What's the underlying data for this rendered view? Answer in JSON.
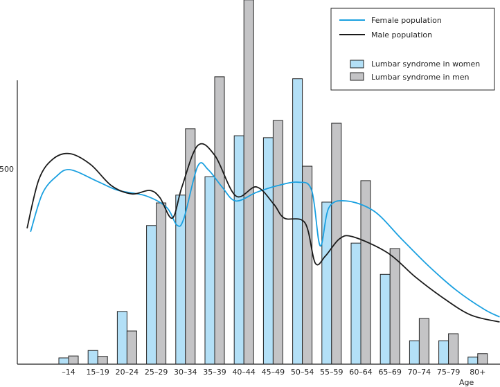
{
  "chart_data": {
    "type": "bar+line",
    "title": "",
    "xlabel": "Age",
    "ylabel": "",
    "y_ticks": [
      {
        "value": 500,
        "label": "500"
      }
    ],
    "ylim": [
      0,
      935
    ],
    "categories": [
      "–14",
      "15–19",
      "20–24",
      "25–29",
      "30–34",
      "35–39",
      "40–44",
      "45–49",
      "50–54",
      "55–59",
      "60–64",
      "65–69",
      "70–74",
      "75–79",
      "80+"
    ],
    "colors": {
      "female_line": "#1aa0e0",
      "male_line": "#1a1a1a",
      "women_bar": "#b3e0f7",
      "men_bar": "#c4c4c6",
      "bar_stroke": "#222222"
    },
    "bars": [
      {
        "name": "Lumbar syndrome in women",
        "values": [
          16,
          35,
          135,
          355,
          433,
          480,
          585,
          580,
          731,
          415,
          310,
          230,
          60,
          60,
          18
        ]
      },
      {
        "name": "Lumbar syndrome in men",
        "values": [
          21,
          20,
          85,
          413,
          603,
          736,
          933,
          624,
          507,
          617,
          470,
          296,
          117,
          78,
          27
        ]
      }
    ],
    "lines": [
      {
        "name": "Female population",
        "points": [
          [
            -1.3,
            339
          ],
          [
            -0.9,
            436
          ],
          [
            -0.43,
            480
          ],
          [
            0.05,
            498
          ],
          [
            0.99,
            468
          ],
          [
            1.7,
            445
          ],
          [
            2.65,
            431
          ],
          [
            3.36,
            401
          ],
          [
            3.71,
            356
          ],
          [
            3.95,
            374
          ],
          [
            4.42,
            507
          ],
          [
            4.78,
            498
          ],
          [
            5.25,
            454
          ],
          [
            5.72,
            418
          ],
          [
            6.43,
            440
          ],
          [
            7.14,
            457
          ],
          [
            7.85,
            466
          ],
          [
            8.32,
            445
          ],
          [
            8.61,
            303
          ],
          [
            8.91,
            401
          ],
          [
            9.5,
            418
          ],
          [
            10.45,
            392
          ],
          [
            11.39,
            321
          ],
          [
            12.34,
            250
          ],
          [
            13.29,
            188
          ],
          [
            14.23,
            140
          ],
          [
            14.75,
            121
          ]
        ]
      },
      {
        "name": "Male population",
        "points": [
          [
            -1.42,
            348
          ],
          [
            -1.02,
            472
          ],
          [
            -0.54,
            525
          ],
          [
            0.05,
            539
          ],
          [
            0.76,
            511
          ],
          [
            1.47,
            457
          ],
          [
            2.17,
            436
          ],
          [
            2.77,
            445
          ],
          [
            3.12,
            427
          ],
          [
            3.55,
            374
          ],
          [
            3.88,
            454
          ],
          [
            4.42,
            560
          ],
          [
            5.01,
            534
          ],
          [
            5.72,
            431
          ],
          [
            6.43,
            454
          ],
          [
            7.02,
            410
          ],
          [
            7.38,
            374
          ],
          [
            8.09,
            362
          ],
          [
            8.44,
            259
          ],
          [
            8.79,
            277
          ],
          [
            9.27,
            321
          ],
          [
            9.74,
            326
          ],
          [
            10.92,
            285
          ],
          [
            11.87,
            223
          ],
          [
            12.81,
            170
          ],
          [
            13.76,
            126
          ],
          [
            14.75,
            108
          ]
        ]
      }
    ],
    "legend": {
      "position": "top-right",
      "entries": [
        "Female population",
        "Male population",
        "Lumbar syndrome in women",
        "Lumbar syndrome in men"
      ]
    },
    "grid": false
  }
}
